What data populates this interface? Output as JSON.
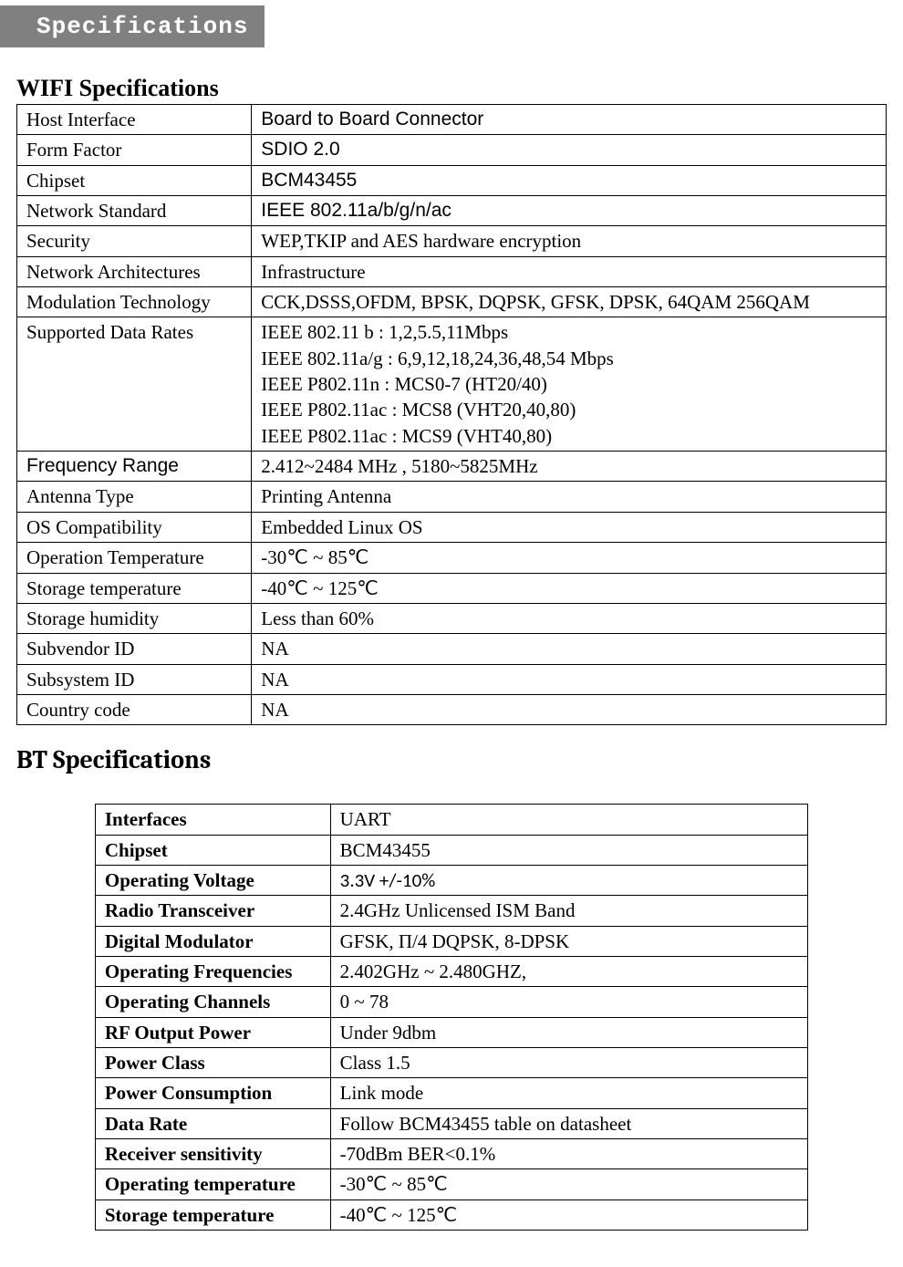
{
  "tab": {
    "label": "Specifications"
  },
  "wifi": {
    "title": "WIFI Specifications",
    "rows": [
      {
        "label": "Host Interface",
        "value": "Board to Board Connector",
        "value_class": "arial"
      },
      {
        "label": "Form Factor",
        "value": "SDIO 2.0",
        "value_class": "arial"
      },
      {
        "label": "Chipset",
        "value": "BCM43455",
        "value_class": "arial"
      },
      {
        "label": "Network Standard",
        "value": "IEEE 802.11a/b/g/n/ac",
        "value_class": "arial"
      },
      {
        "label": "Security",
        "value": "WEP,TKIP and AES hardware encryption"
      },
      {
        "label": "Network Architectures",
        "value": "Infrastructure"
      },
      {
        "label": "Modulation Technology",
        "value": "CCK,DSSS,OFDM, BPSK, DQPSK, GFSK, DPSK, 64QAM 256QAM"
      },
      {
        "label": "Supported Data Rates",
        "value": "IEEE 802.11 b : 1,2,5.5,11Mbps\nIEEE 802.11a/g : 6,9,12,18,24,36,48,54 Mbps\nIEEE P802.11n : MCS0-7 (HT20/40)\nIEEE P802.11ac : MCS8 (VHT20,40,80)\nIEEE P802.11ac : MCS9 (VHT40,80)",
        "multiline": true
      },
      {
        "label": "Frequency Range",
        "value": "2.412~2484 MHz , 5180~5825MHz",
        "label_class": "arial"
      },
      {
        "label": "Antenna Type",
        "value": "Printing Antenna"
      },
      {
        "label": "OS Compatibility",
        "value": "Embedded Linux OS"
      },
      {
        "label": "Operation Temperature",
        "value": "-30℃  ~ 85℃"
      },
      {
        "label": "Storage temperature",
        "value": "-40℃  ~ 125℃"
      },
      {
        "label": "Storage humidity",
        "value": "Less than 60%"
      },
      {
        "label": "Subvendor ID",
        "value": "NA"
      },
      {
        "label": "Subsystem ID",
        "value": "NA"
      },
      {
        "label": "Country code",
        "value": "NA"
      }
    ]
  },
  "bt": {
    "title": "BT Specifications",
    "rows": [
      {
        "label": "Interfaces",
        "value": "UART"
      },
      {
        "label": "Chipset",
        "value": "BCM43455"
      },
      {
        "label": "Operating Voltage",
        "value": "3.3V +/-10%",
        "value_class": "calibri"
      },
      {
        "label": "Radio Transceiver",
        "value": "2.4GHz Unlicensed ISM Band"
      },
      {
        "label": "Digital Modulator",
        "value": "GFSK, Π/4 DQPSK, 8-DPSK"
      },
      {
        "label": "Operating Frequencies",
        "value": "2.402GHz ~ 2.480GHZ,"
      },
      {
        "label": "Operating Channels",
        "value": "0 ~ 78"
      },
      {
        "label": "RF Output Power",
        "value": "Under 9dbm"
      },
      {
        "label": "Power Class",
        "value": "Class 1.5"
      },
      {
        "label": "Power Consumption",
        "value": "Link mode"
      },
      {
        "label": "Data Rate",
        "value": "Follow BCM43455 table on datasheet"
      },
      {
        "label": "Receiver sensitivity",
        "value": "-70dBm BER<0.1%"
      },
      {
        "label": "Operating temperature",
        "value": "-30℃  ~ 85℃"
      },
      {
        "label": "Storage temperature",
        "value": "-40℃  ~ 125℃"
      }
    ]
  }
}
